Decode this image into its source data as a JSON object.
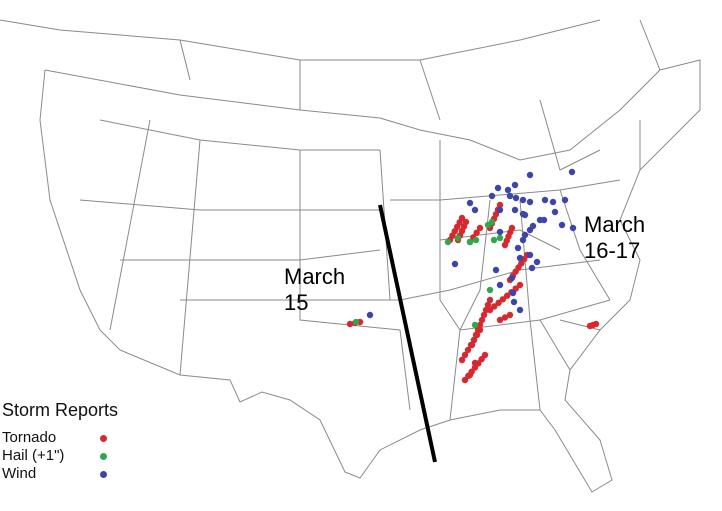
{
  "map": {
    "labels": {
      "march15": [
        "March",
        "15"
      ],
      "march1617": [
        "March",
        "16-17"
      ]
    },
    "colors": {
      "tornado": "#d6282f",
      "hail": "#2ea84a",
      "wind": "#3b46a8",
      "border": "#888888",
      "divider": "#000000"
    }
  },
  "legend": {
    "title": "Storm Reports",
    "items": [
      {
        "label": "Tornado",
        "type": "tornado"
      },
      {
        "label": "Hail (+1\")",
        "type": "hail"
      },
      {
        "label": "Wind",
        "type": "wind"
      }
    ]
  }
}
